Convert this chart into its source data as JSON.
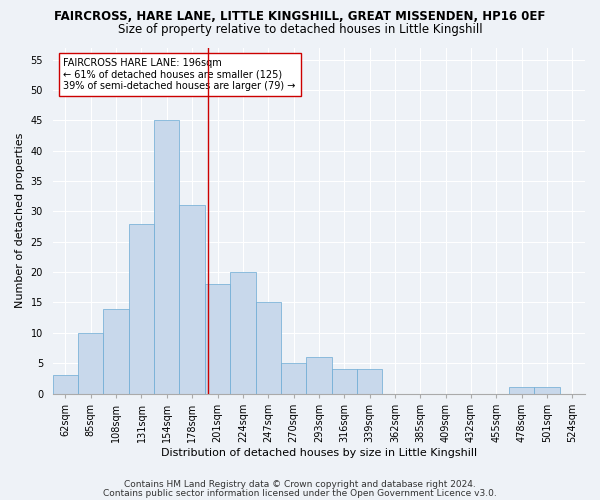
{
  "title1": "FAIRCROSS, HARE LANE, LITTLE KINGSHILL, GREAT MISSENDEN, HP16 0EF",
  "title2": "Size of property relative to detached houses in Little Kingshill",
  "xlabel": "Distribution of detached houses by size in Little Kingshill",
  "ylabel": "Number of detached properties",
  "categories": [
    "62sqm",
    "85sqm",
    "108sqm",
    "131sqm",
    "154sqm",
    "178sqm",
    "201sqm",
    "224sqm",
    "247sqm",
    "270sqm",
    "293sqm",
    "316sqm",
    "339sqm",
    "362sqm",
    "385sqm",
    "409sqm",
    "432sqm",
    "455sqm",
    "478sqm",
    "501sqm",
    "524sqm"
  ],
  "values": [
    3,
    10,
    14,
    28,
    45,
    31,
    18,
    20,
    15,
    5,
    6,
    4,
    4,
    0,
    0,
    0,
    0,
    0,
    1,
    1,
    0
  ],
  "bar_color": "#c8d8eb",
  "bar_edge_color": "#6aaad4",
  "bar_width": 1.0,
  "vline_x": 5.63,
  "vline_color": "#cc0000",
  "annotation_text": "FAIRCROSS HARE LANE: 196sqm\n← 61% of detached houses are smaller (125)\n39% of semi-detached houses are larger (79) →",
  "annotation_box_color": "#ffffff",
  "annotation_box_edge": "#cc0000",
  "ylim": [
    0,
    57
  ],
  "yticks": [
    0,
    5,
    10,
    15,
    20,
    25,
    30,
    35,
    40,
    45,
    50,
    55
  ],
  "footer1": "Contains HM Land Registry data © Crown copyright and database right 2024.",
  "footer2": "Contains public sector information licensed under the Open Government Licence v3.0.",
  "bg_color": "#eef2f7",
  "grid_color": "#ffffff",
  "title1_fontsize": 8.5,
  "title2_fontsize": 8.5,
  "xlabel_fontsize": 8,
  "ylabel_fontsize": 8,
  "tick_fontsize": 7,
  "annot_fontsize": 7,
  "footer_fontsize": 6.5
}
